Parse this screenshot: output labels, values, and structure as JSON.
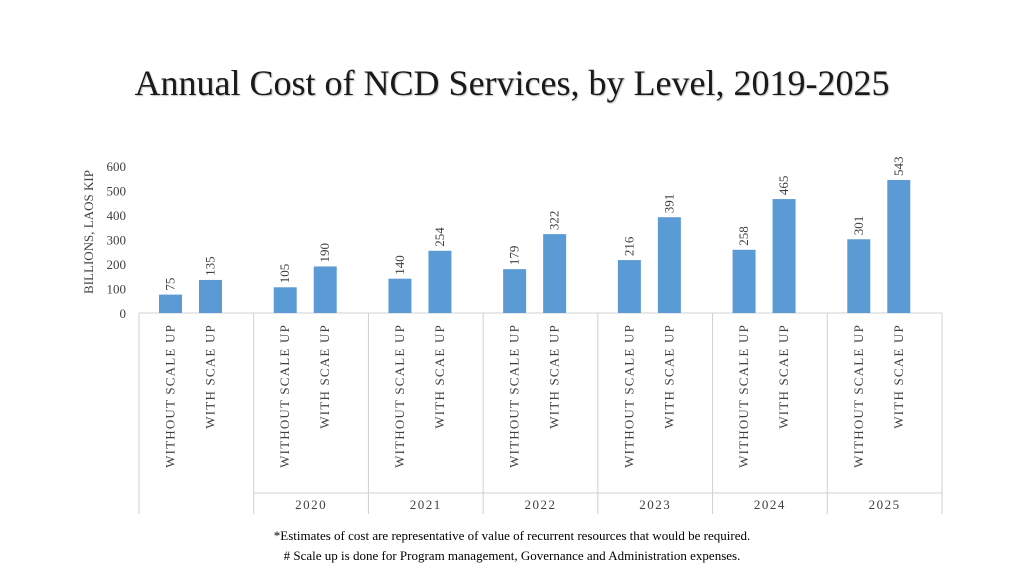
{
  "chart_data": {
    "type": "bar",
    "title": "Annual Cost of NCD Services, by Level, 2019-2025",
    "ylabel": "BILLIONS, LAOS KIP",
    "ylim": [
      0,
      600
    ],
    "yticks": [
      0,
      100,
      200,
      300,
      400,
      500,
      600
    ],
    "groups": [
      {
        "label": "",
        "bars": [
          {
            "category": "WITHOUT SCALE UP",
            "value": 75
          },
          {
            "category": "WITH SCAE UP",
            "value": 135
          }
        ]
      },
      {
        "label": "2020",
        "bars": [
          {
            "category": "WITHOUT SCALE UP",
            "value": 105
          },
          {
            "category": "WITH SCAE UP",
            "value": 190
          }
        ]
      },
      {
        "label": "2021",
        "bars": [
          {
            "category": "WITHOUT SCALE UP",
            "value": 140
          },
          {
            "category": "WITH SCAE UP",
            "value": 254
          }
        ]
      },
      {
        "label": "2022",
        "bars": [
          {
            "category": "WITHOUT SCALE UP",
            "value": 179
          },
          {
            "category": "WITH SCAE UP",
            "value": 322
          }
        ]
      },
      {
        "label": "2023",
        "bars": [
          {
            "category": "WITHOUT SCALE UP",
            "value": 216
          },
          {
            "category": "WITH SCAE UP",
            "value": 391
          }
        ]
      },
      {
        "label": "2024",
        "bars": [
          {
            "category": "WITHOUT SCALE UP",
            "value": 258
          },
          {
            "category": "WITH SCAE UP",
            "value": 465
          }
        ]
      },
      {
        "label": "2025",
        "bars": [
          {
            "category": "WITHOUT SCALE UP",
            "value": 301
          },
          {
            "category": "WITH SCAE UP",
            "value": 543
          }
        ]
      }
    ],
    "bar_color": "#5b9bd5",
    "grid": false,
    "legend": "none"
  },
  "notes": {
    "line1": "*Estimates of cost are representative of value of recurrent resources that would be required.",
    "line2": "# Scale up is done for Program management, Governance and Administration expenses."
  }
}
